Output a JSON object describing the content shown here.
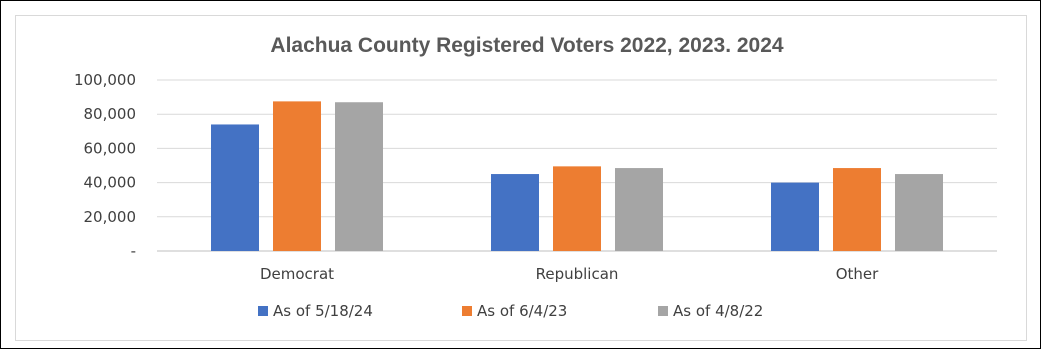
{
  "chart_data": {
    "type": "bar",
    "title": "Alachua County Registered Voters 2022, 2023. 2024",
    "categories": [
      "Democrat",
      "Republican",
      "Other"
    ],
    "series": [
      {
        "name": "As of 5/18/24",
        "color": "#4472c4",
        "values": [
          74000,
          45000,
          40000
        ]
      },
      {
        "name": "As of 6/4/23",
        "color": "#ed7d31",
        "values": [
          87500,
          49500,
          48500
        ]
      },
      {
        "name": "As of 4/8/22",
        "color": "#a5a5a5",
        "values": [
          87000,
          48500,
          45000
        ]
      }
    ],
    "ylim": [
      0,
      100000
    ],
    "yticks": [
      0,
      20000,
      40000,
      60000,
      80000,
      100000
    ],
    "ytick_labels": [
      "-",
      "20,000",
      "40,000",
      "60,000",
      "80,000",
      "100,000"
    ],
    "grid": true,
    "legend_position": "bottom"
  }
}
